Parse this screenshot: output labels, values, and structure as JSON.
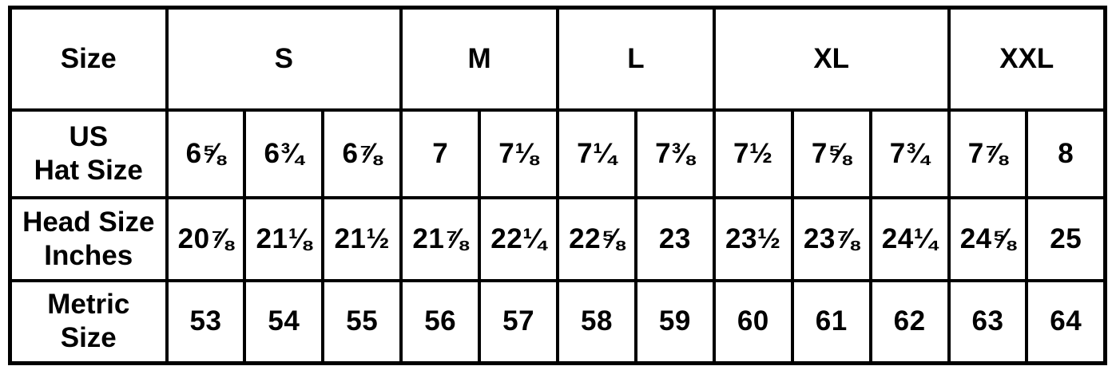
{
  "chart_data": {
    "type": "table",
    "corner_header": "Size",
    "size_groups": [
      {
        "label": "S",
        "span": 3
      },
      {
        "label": "M",
        "span": 2
      },
      {
        "label": "L",
        "span": 2
      },
      {
        "label": "XL",
        "span": 3
      },
      {
        "label": "XXL",
        "span": 2
      }
    ],
    "rows": [
      {
        "header": "US\nHat Size",
        "values": [
          "6⅝",
          "6¾",
          "6⅞",
          "7",
          "7⅛",
          "7¼",
          "7⅜",
          "7½",
          "7⅝",
          "7¾",
          "7⅞",
          "8"
        ]
      },
      {
        "header": "Head Size\nInches",
        "values": [
          "20⅞",
          "21⅛",
          "21½",
          "21⅞",
          "22¼",
          "22⅝",
          "23",
          "23½",
          "23⅞",
          "24¼",
          "24⅝",
          "25"
        ]
      },
      {
        "header": "Metric\nSize",
        "values": [
          "53",
          "54",
          "55",
          "56",
          "57",
          "58",
          "59",
          "60",
          "61",
          "62",
          "63",
          "64"
        ]
      }
    ],
    "layout_hints": {
      "columns": 13,
      "grid": "on",
      "merged_header_row": true
    },
    "colors": {
      "border": "#000000",
      "background": "#ffffff",
      "text": "#000000"
    }
  }
}
